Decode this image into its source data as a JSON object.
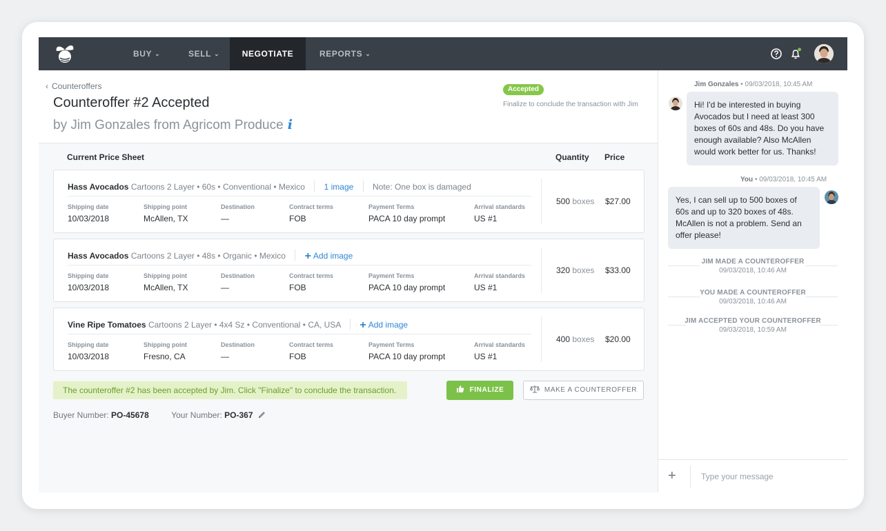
{
  "nav": {
    "items": [
      {
        "label": "BUY"
      },
      {
        "label": "SELL"
      },
      {
        "label": "NEGOTIATE"
      },
      {
        "label": "REPORTS"
      }
    ]
  },
  "header": {
    "breadcrumb": "Counteroffers",
    "title": "Counteroffer #2 Accepted",
    "subtitle": "by Jim Gonzales from Agricom Produce",
    "info_glyph": "i",
    "badge": "Accepted",
    "finalize_note": "Finalize to conclude the transaction with Jim"
  },
  "sheet": {
    "title": "Current Price Sheet",
    "quantity_header": "Quantity",
    "price_header": "Price",
    "field_labels": [
      "Shipping date",
      "Shipping point",
      "Destination",
      "Contract terms",
      "Payment Terms",
      "Arrival standards"
    ],
    "rows": [
      {
        "product": "Hass Avocados",
        "description": "Cartoons 2 Layer • 60s • Conventional • Mexico",
        "image_link": "1 image",
        "note": "Note: One box is damaged",
        "fields": [
          "10/03/2018",
          "McAllen, TX",
          "—",
          "FOB",
          "PACA 10 day prompt",
          "US #1"
        ],
        "qty": "500",
        "unit": "boxes",
        "price": "$27.00"
      },
      {
        "product": "Hass Avocados",
        "description": "Cartoons 2 Layer • 48s • Organic • Mexico",
        "image_link": "Add image",
        "fields": [
          "10/03/2018",
          "McAllen, TX",
          "—",
          "FOB",
          "PACA 10 day prompt",
          "US #1"
        ],
        "qty": "320",
        "unit": "boxes",
        "price": "$33.00"
      },
      {
        "product": "Vine Ripe Tomatoes",
        "description": "Cartoons 2 Layer • 4x4 Sz • Conventional • CA, USA",
        "image_link": "Add image",
        "fields": [
          "10/03/2018",
          "Fresno, CA",
          "—",
          "FOB",
          "PACA 10 day prompt",
          "US #1"
        ],
        "qty": "400",
        "unit": "boxes",
        "price": "$20.00"
      }
    ]
  },
  "actions": {
    "alert": "The counteroffer #2 has been accepted by Jim. Click \"Finalize\" to conclude the transaction.",
    "finalize": "FINALIZE",
    "counteroffer": "MAKE A COUNTEROFFER"
  },
  "numbers": {
    "buyer_label": "Buyer Number:",
    "buyer_value": "PO-45678",
    "your_label": "Your Number:",
    "your_value": "PO-367"
  },
  "chat": {
    "messages": [
      {
        "author": "Jim Gonzales",
        "time": "• 09/03/2018, 10:45 AM",
        "text": "Hi! I'd be interested in buying Avocados but I need at least 300 boxes of 60s and 48s. Do you have enough available? Also McAllen would work better for us. Thanks!"
      },
      {
        "author": "You",
        "time": "• 09/03/2018, 10:45 AM",
        "text": "Yes, I can sell up to 500 boxes of 60s and up to 320 boxes of 48s. McAllen is not a problem. Send an offer please!"
      }
    ],
    "events": [
      {
        "title": "JIM MADE A COUNTEROFFER",
        "time": "09/03/2018, 10:46 AM"
      },
      {
        "title": "YOU MADE A COUNTEROFFER",
        "time": "09/03/2018, 10:46 AM"
      },
      {
        "title": "JIM ACCEPTED YOUR COUNTEROFFER",
        "time": "09/03/2018, 10:59 AM"
      }
    ],
    "placeholder": "Type your message"
  },
  "colors": {
    "nav_bg": "#3a4048",
    "nav_active": "#23272c",
    "accent_green": "#7cc24a",
    "link_blue": "#2e86d6"
  },
  "icons": [
    "logo-icon",
    "chevron-down-icon",
    "help-icon",
    "bell-icon",
    "user-avatar",
    "info-icon",
    "plus-icon",
    "thumbs-up-icon",
    "scales-icon",
    "pencil-icon",
    "chevron-left-icon"
  ]
}
